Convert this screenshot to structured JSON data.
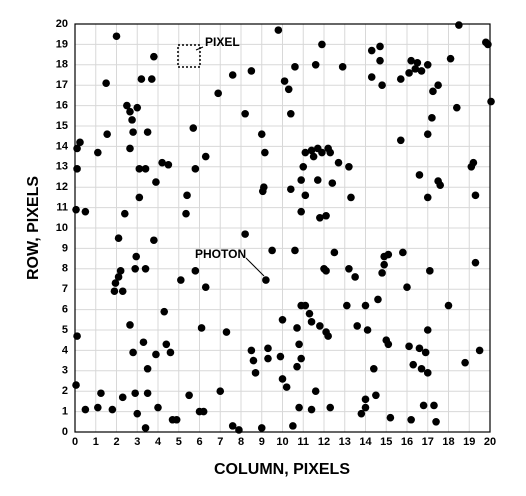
{
  "chart_data": {
    "type": "scatter",
    "x_label": "COLUMN, PIXELS",
    "y_label": "ROW, PIXELS",
    "annotations": [
      "PIXEL",
      "PHOTON"
    ],
    "xlim": [
      0,
      20
    ],
    "ylim": [
      0,
      20
    ],
    "xticks": [
      0,
      1,
      2,
      3,
      4,
      5,
      6,
      7,
      8,
      9,
      10,
      11,
      12,
      13,
      14,
      15,
      16,
      17,
      18,
      19,
      20
    ],
    "yticks": [
      0,
      1,
      2,
      3,
      4,
      5,
      6,
      7,
      8,
      9,
      10,
      11,
      12,
      13,
      14,
      15,
      16,
      17,
      18,
      19,
      20
    ],
    "grid": true,
    "color": "#000000",
    "x": [
      0.24,
      0.1,
      0.1,
      0.05,
      0.5,
      0.1,
      0.05,
      0.5,
      1.1,
      1.25,
      1.8,
      2.3,
      2.9,
      3.0,
      3.4,
      3.5,
      4.0,
      4.7,
      4.9,
      5.5,
      6.2,
      6.0,
      7.0,
      7.6,
      7.9,
      9.0,
      10.5,
      10.8,
      11.4,
      12.3,
      11.6,
      13.8,
      14.0,
      14.0,
      14.5,
      15.2,
      16.2,
      16.8,
      17.3,
      17.4,
      3.5,
      2.8,
      3.9,
      4.4,
      4.6,
      4.3,
      2.65,
      3.3,
      6.1,
      7.3,
      8.5,
      8.6,
      8.7,
      9.3,
      9.3,
      9.9,
      10.0,
      10.2,
      10.7,
      10.9,
      10.8,
      10.7,
      11.4,
      11.8,
      11.3,
      10.9,
      11.1,
      12.1,
      12.2,
      10.0,
      10.6,
      9.5,
      9.2,
      12.0,
      12.1,
      12.5,
      13.2,
      13.5,
      13.1,
      13.6,
      14.0,
      14.1,
      14.6,
      14.8,
      14.9,
      14.9,
      15.1,
      15.8,
      16.0,
      15.0,
      15.1,
      14.4,
      16.1,
      16.6,
      16.7,
      17.0,
      16.9,
      17.0,
      16.3,
      18.0,
      18.8,
      19.5,
      17.1,
      19.3,
      19.3,
      19.1,
      19.2,
      20.05,
      19.9,
      19.8,
      18.5,
      18.4,
      17.5,
      17.6,
      17.0,
      16.6,
      17.0,
      17.2,
      17.25,
      17.5,
      17.0,
      16.5,
      16.2,
      16.4,
      16.1,
      16.7,
      18.1,
      15.7,
      14.8,
      14.7,
      14.3,
      14.7,
      14.3,
      15.7,
      12.9,
      11.9,
      11.6,
      10.6,
      9.8,
      10.1,
      10.3,
      10.4,
      11.0,
      11.1,
      11.4,
      11.7,
      11.5,
      11.7,
      11.9,
      12.2,
      12.3,
      12.4,
      12.7,
      13.2,
      13.3,
      12.1,
      11.8,
      10.9,
      10.4,
      10.9,
      11.1,
      9.1,
      9.05,
      9.15,
      9.0,
      8.2,
      8.2,
      8.5,
      7.6,
      6.9,
      6.3,
      5.7,
      5.4,
      5.35,
      5.8,
      5.1,
      6.3,
      5.8,
      4.5,
      4.2,
      3.9,
      3.4,
      3.1,
      3.1,
      3.5,
      2.8,
      3.0,
      2.75,
      2.65,
      2.5,
      2.65,
      2.4,
      3.7,
      3.2,
      3.8,
      2.0,
      1.5,
      1.55,
      1.1,
      2.1,
      2.2,
      2.1,
      1.95,
      1.9,
      2.3,
      2.95,
      2.9,
      3.4,
      3.8
    ],
    "values": [
      14.2,
      13.9,
      12.9,
      10.9,
      10.8,
      4.7,
      2.3,
      1.1,
      1.2,
      1.9,
      1.1,
      1.7,
      1.9,
      0.9,
      0.2,
      1.9,
      1.2,
      0.6,
      0.6,
      1.8,
      1.0,
      1.0,
      2.0,
      0.3,
      0.1,
      0.2,
      0.3,
      1.2,
      1.1,
      1.2,
      2.0,
      0.9,
      1.2,
      1.6,
      1.8,
      0.7,
      0.6,
      1.3,
      1.3,
      0.5,
      3.1,
      3.9,
      3.8,
      4.3,
      3.9,
      5.9,
      5.25,
      4.4,
      5.1,
      4.9,
      4.0,
      3.5,
      2.9,
      4.1,
      3.6,
      3.7,
      2.6,
      2.2,
      3.2,
      3.6,
      4.3,
      5.1,
      5.4,
      5.2,
      5.8,
      6.2,
      6.2,
      4.9,
      4.7,
      5.5,
      8.9,
      8.9,
      7.45,
      8.0,
      7.9,
      8.8,
      8.0,
      7.6,
      6.2,
      5.2,
      6.2,
      5.0,
      6.5,
      7.8,
      8.2,
      8.6,
      8.7,
      8.8,
      7.1,
      4.5,
      4.3,
      3.1,
      4.2,
      4.1,
      3.1,
      2.9,
      3.9,
      5.0,
      3.3,
      6.2,
      3.4,
      4.0,
      7.9,
      8.3,
      11.6,
      13.0,
      13.2,
      16.2,
      19.0,
      19.1,
      19.95,
      15.9,
      12.3,
      12.1,
      11.5,
      12.6,
      14.6,
      15.4,
      16.7,
      17.0,
      18.0,
      18.1,
      18.2,
      17.8,
      17.6,
      17.7,
      18.3,
      17.3,
      17.0,
      18.9,
      18.7,
      18.2,
      17.4,
      14.3,
      17.9,
      19.0,
      18.0,
      17.9,
      19.7,
      17.2,
      16.8,
      15.6,
      13.0,
      13.7,
      13.8,
      13.9,
      13.5,
      12.35,
      13.7,
      13.9,
      13.7,
      12.2,
      13.2,
      13.0,
      11.5,
      10.6,
      10.5,
      10.8,
      11.9,
      12.35,
      11.6,
      12.0,
      11.8,
      13.7,
      14.6,
      9.7,
      15.6,
      17.7,
      17.5,
      16.6,
      13.5,
      14.9,
      11.6,
      10.7,
      12.9,
      7.45,
      7.1,
      7.9,
      13.1,
      13.2,
      12.25,
      12.9,
      12.9,
      11.5,
      14.7,
      14.7,
      15.9,
      15.3,
      15.7,
      16.0,
      13.9,
      10.7,
      17.3,
      17.3,
      18.4,
      19.4,
      17.1,
      14.6,
      13.7,
      9.5,
      7.9,
      7.6,
      7.3,
      6.9,
      6.9,
      8.6,
      8.0,
      8.0,
      9.4
    ]
  }
}
